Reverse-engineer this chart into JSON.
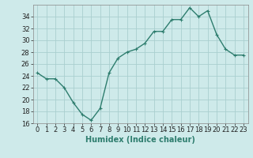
{
  "x": [
    0,
    1,
    2,
    3,
    4,
    5,
    6,
    7,
    8,
    9,
    10,
    11,
    12,
    13,
    14,
    15,
    16,
    17,
    18,
    19,
    20,
    21,
    22,
    23
  ],
  "y": [
    24.5,
    23.5,
    23.5,
    22.0,
    19.5,
    17.5,
    16.5,
    18.5,
    24.5,
    27.0,
    28.0,
    28.5,
    29.5,
    31.5,
    31.5,
    33.5,
    33.5,
    35.5,
    34.0,
    35.0,
    31.0,
    28.5,
    27.5,
    27.5
  ],
  "line_color": "#2e7d6e",
  "marker": "+",
  "marker_size": 3,
  "bg_color": "#ceeaea",
  "grid_color": "#aacfcf",
  "xlabel": "Humidex (Indice chaleur)",
  "ylim": [
    16,
    36
  ],
  "xlim": [
    -0.5,
    23.5
  ],
  "yticks": [
    16,
    18,
    20,
    22,
    24,
    26,
    28,
    30,
    32,
    34
  ],
  "xticks": [
    0,
    1,
    2,
    3,
    4,
    5,
    6,
    7,
    8,
    9,
    10,
    11,
    12,
    13,
    14,
    15,
    16,
    17,
    18,
    19,
    20,
    21,
    22,
    23
  ],
  "tick_fontsize": 6,
  "xlabel_fontsize": 7,
  "line_width": 1.0
}
